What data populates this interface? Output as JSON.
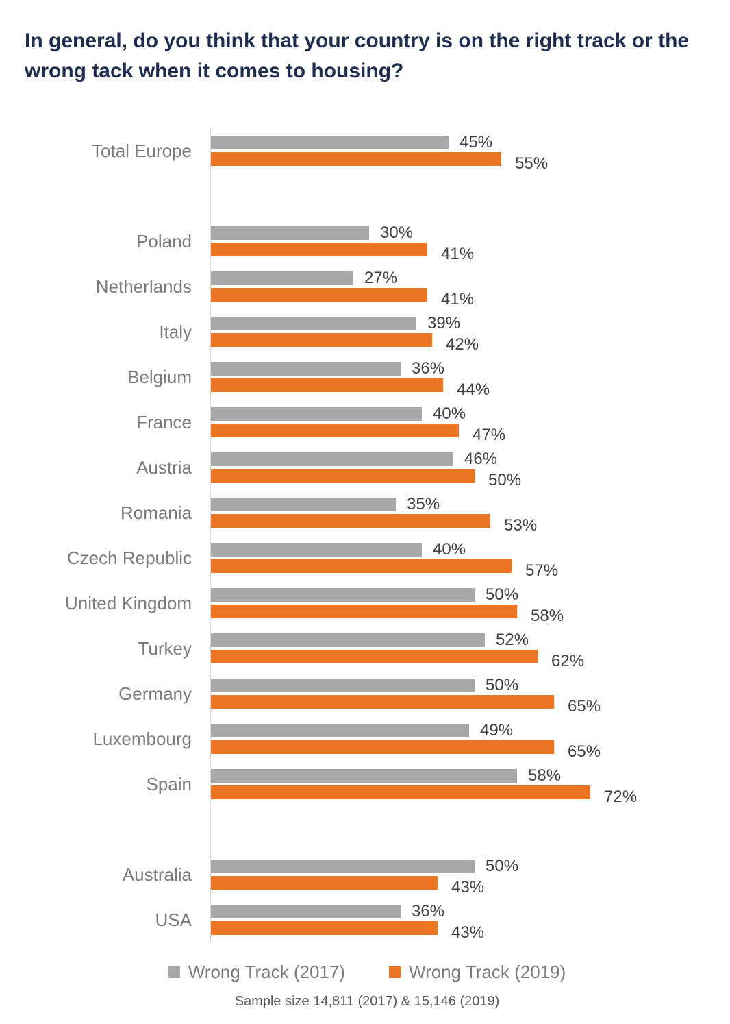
{
  "title": "In general, do you think that your country is on the right track or the wrong tack when it comes to housing?",
  "legend": [
    {
      "label": "Wrong Track (2017)",
      "color": "#a8a8a8"
    },
    {
      "label": "Wrong Track (2019)",
      "color": "#ec7524"
    }
  ],
  "footnote": "Sample size 14,811 (2017) & 15,146 (2019)",
  "chart_data": {
    "type": "bar",
    "orientation": "horizontal",
    "title": "In general, do you think that your country is on the right track or the wrong tack when it comes to housing?",
    "categories": [
      "Total Europe",
      "Poland",
      "Netherlands",
      "Italy",
      "Belgium",
      "France",
      "Austria",
      "Romania",
      "Czech Republic",
      "United Kingdom",
      "Turkey",
      "Germany",
      "Luxembourg",
      "Spain",
      "Australia",
      "USA"
    ],
    "series": [
      {
        "name": "Wrong Track (2017)",
        "color": "#a8a8a8",
        "values": [
          45,
          30,
          27,
          39,
          36,
          40,
          46,
          35,
          40,
          50,
          52,
          50,
          49,
          58,
          50,
          36
        ]
      },
      {
        "name": "Wrong Track (2019)",
        "color": "#ec7524",
        "values": [
          55,
          41,
          41,
          42,
          44,
          47,
          50,
          53,
          57,
          58,
          62,
          65,
          65,
          72,
          43,
          43
        ]
      }
    ],
    "value_suffix": "%",
    "gaps_after": [
      "Total Europe",
      "Spain"
    ],
    "xlim": [
      0,
      100
    ],
    "grid": false,
    "legend_position": "bottom",
    "value_labels": true
  }
}
